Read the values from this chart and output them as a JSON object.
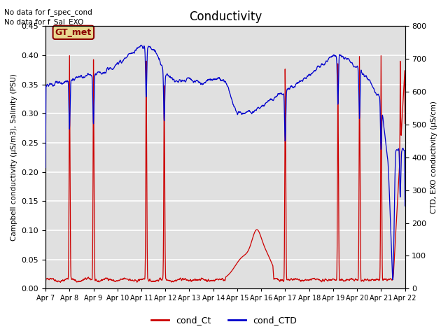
{
  "title": "Conductivity",
  "ylabel_left": "Campbell conductivity (μS/m3), Salinity (PSU)",
  "ylabel_right": "CTD, EXO conductivity (μS/cm)",
  "ylim_left": [
    0.0,
    0.45
  ],
  "ylim_right": [
    0,
    800
  ],
  "yticks_left": [
    0.0,
    0.05,
    0.1,
    0.15,
    0.2,
    0.25,
    0.3,
    0.35,
    0.4,
    0.45
  ],
  "yticks_right": [
    0,
    100,
    200,
    300,
    400,
    500,
    600,
    700,
    800
  ],
  "note1": "No data for f_spec_cond",
  "note2": "No data for f_Sal_EXO",
  "legend_label1": "cond_Ct",
  "legend_label2": "cond_CTD",
  "legend_color1": "#cc0000",
  "legend_color2": "#0000cc",
  "gt_met_label": "GT_met",
  "gt_met_bg": "#e8d890",
  "gt_met_border": "#8b0000",
  "gt_met_text": "#8b0000",
  "plot_bg": "#e0e0e0",
  "grid_color": "#ffffff",
  "xtick_labels": [
    "Apr 7",
    "Apr 8",
    "Apr 9",
    "Apr 10",
    "Apr 11",
    "Apr 12",
    "Apr 13",
    "Apr 14",
    "Apr 15",
    "Apr 16",
    "Apr 17",
    "Apr 18",
    "Apr 19",
    "Apr 20",
    "Apr 21",
    "Apr 22"
  ]
}
